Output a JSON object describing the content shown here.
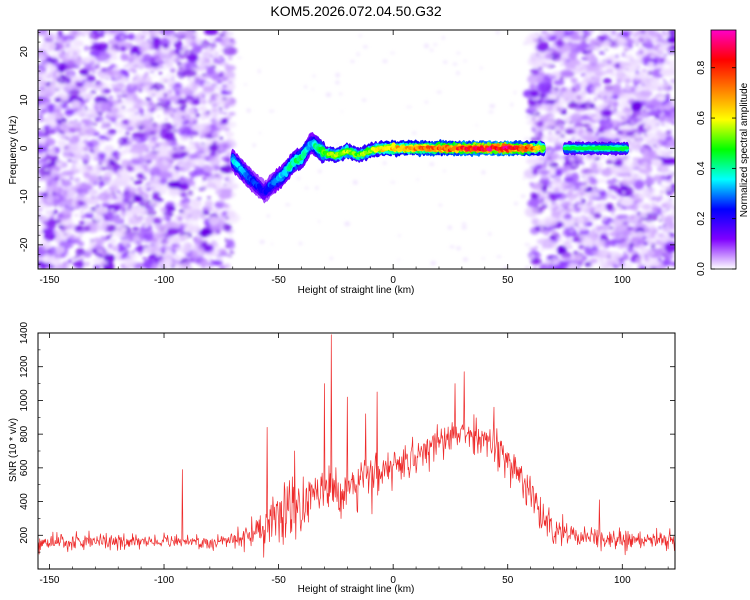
{
  "chart_data": [
    {
      "type": "heatmap",
      "title": "KOM5.2026.072.04.50.G32",
      "xlabel": "Height of straight line (km)",
      "ylabel": "Frequency (Hz)",
      "xlim": [
        -155,
        123
      ],
      "ylim": [
        -25,
        24.5
      ],
      "xticks": [
        -150,
        -100,
        -50,
        0,
        50,
        100
      ],
      "yticks": [
        -20,
        -10,
        0,
        10,
        20
      ],
      "colorbar": {
        "label": "Normalized spectral amplitude",
        "range": [
          0,
          0.95
        ],
        "ticks": [
          0.0,
          0.2,
          0.4,
          0.6,
          0.8
        ],
        "tick_labels": [
          "0.0",
          "0.2",
          "0.4",
          "0.6",
          "0.8"
        ],
        "colormap": [
          "#ffffff",
          "#7f00ff",
          "#0000ff",
          "#00ffff",
          "#00ff00",
          "#ffff00",
          "#ff7f00",
          "#ff0000",
          "#ff00c8"
        ]
      },
      "trace_ridge": {
        "x": [
          -70,
          -64,
          -60,
          -56,
          -52,
          -48,
          -44,
          -40,
          -36,
          -34,
          -30,
          -25,
          -20,
          -15,
          -10,
          -5,
          0,
          10,
          20,
          30,
          40,
          50,
          60,
          66
        ],
        "y": [
          -2.5,
          -5.5,
          -7.5,
          -9,
          -7,
          -5.5,
          -3,
          -2,
          1,
          0.5,
          -1,
          -1.5,
          -0.5,
          -1.5,
          -0.5,
          0,
          0,
          0,
          0,
          0,
          0,
          0,
          0,
          0
        ],
        "amplitude": [
          0.35,
          0.3,
          0.25,
          0.22,
          0.3,
          0.35,
          0.4,
          0.45,
          0.3,
          0.4,
          0.5,
          0.55,
          0.55,
          0.5,
          0.55,
          0.6,
          0.65,
          0.7,
          0.75,
          0.8,
          0.85,
          0.85,
          0.75,
          0.55
        ]
      },
      "secondary_trace": {
        "x": [
          75,
          102
        ],
        "y": 0,
        "amplitude": 0.45
      },
      "noise_regions": [
        [
          -155,
          -70
        ],
        [
          60,
          123
        ]
      ]
    },
    {
      "type": "line",
      "xlabel": "Height of straight line (km)",
      "ylabel": "SNR (10 * v/v)",
      "xlim": [
        -155,
        123
      ],
      "ylim": [
        0,
        1400
      ],
      "xticks": [
        -150,
        -100,
        -50,
        0,
        50,
        100
      ],
      "yticks": [
        200,
        400,
        600,
        800,
        1000,
        1200,
        1400
      ],
      "series": [
        {
          "name": "SNR",
          "color": "#ee2b2b",
          "envelope_x": [
            -155,
            -140,
            -120,
            -100,
            -80,
            -70,
            -60,
            -55,
            -50,
            -45,
            -40,
            -35,
            -30,
            -26,
            -20,
            -15,
            -10,
            -5,
            0,
            10,
            20,
            30,
            40,
            50,
            60,
            70,
            80,
            90,
            100,
            110,
            123
          ],
          "envelope_mean": [
            160,
            160,
            165,
            165,
            160,
            170,
            220,
            280,
            320,
            350,
            380,
            420,
            460,
            480,
            480,
            520,
            540,
            560,
            580,
            660,
            760,
            810,
            780,
            640,
            440,
            220,
            185,
            180,
            180,
            170,
            165
          ],
          "envelope_spread": [
            90,
            80,
            80,
            80,
            80,
            90,
            160,
            240,
            300,
            330,
            300,
            280,
            280,
            300,
            260,
            240,
            240,
            220,
            200,
            180,
            170,
            160,
            180,
            200,
            180,
            150,
            120,
            110,
            110,
            100,
            100
          ],
          "peaks": [
            {
              "x": -27,
              "y": 1390
            },
            {
              "x": -30,
              "y": 1100
            },
            {
              "x": -20,
              "y": 1020
            },
            {
              "x": -12,
              "y": 920
            },
            {
              "x": -7,
              "y": 1050
            },
            {
              "x": -55,
              "y": 840
            },
            {
              "x": -43,
              "y": 700
            },
            {
              "x": -92,
              "y": 590
            },
            {
              "x": 31,
              "y": 1170
            },
            {
              "x": 27,
              "y": 1100
            },
            {
              "x": 44,
              "y": 960
            },
            {
              "x": 90,
              "y": 410
            }
          ]
        }
      ]
    }
  ]
}
